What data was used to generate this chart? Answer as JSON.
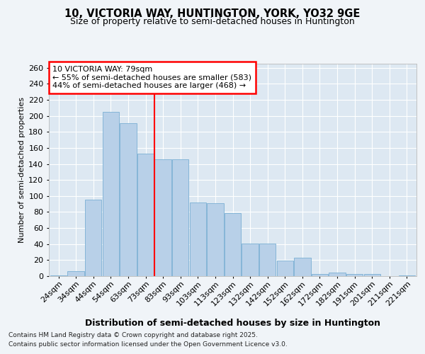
{
  "title_line1": "10, VICTORIA WAY, HUNTINGTON, YORK, YO32 9GE",
  "title_line2": "Size of property relative to semi-detached houses in Huntington",
  "xlabel": "Distribution of semi-detached houses by size in Huntington",
  "ylabel": "Number of semi-detached properties",
  "categories": [
    "24sqm",
    "34sqm",
    "44sqm",
    "54sqm",
    "63sqm",
    "73sqm",
    "83sqm",
    "93sqm",
    "103sqm",
    "113sqm",
    "123sqm",
    "132sqm",
    "142sqm",
    "152sqm",
    "162sqm",
    "172sqm",
    "182sqm",
    "191sqm",
    "201sqm",
    "211sqm",
    "221sqm"
  ],
  "values": [
    1,
    6,
    95,
    205,
    191,
    153,
    146,
    146,
    92,
    91,
    79,
    41,
    41,
    19,
    23,
    3,
    4,
    3,
    3,
    0,
    1
  ],
  "bar_color": "#b8d0e8",
  "bar_edgecolor": "#7aafd4",
  "background_color": "#f0f4f8",
  "plot_bg_color": "#dde8f2",
  "vline_x_index": 6,
  "vline_color": "red",
  "annotation_title": "10 VICTORIA WAY: 79sqm",
  "annotation_line1": "← 55% of semi-detached houses are smaller (583)",
  "annotation_line2": "44% of semi-detached houses are larger (468) →",
  "ylim_max": 265,
  "yticks": [
    0,
    20,
    40,
    60,
    80,
    100,
    120,
    140,
    160,
    180,
    200,
    220,
    240,
    260
  ],
  "footer_line1": "Contains HM Land Registry data © Crown copyright and database right 2025.",
  "footer_line2": "Contains public sector information licensed under the Open Government Licence v3.0.",
  "title_fontsize": 10.5,
  "subtitle_fontsize": 9,
  "ylabel_fontsize": 8,
  "xlabel_fontsize": 9,
  "tick_fontsize": 8,
  "annotation_fontsize": 8,
  "footer_fontsize": 6.5
}
